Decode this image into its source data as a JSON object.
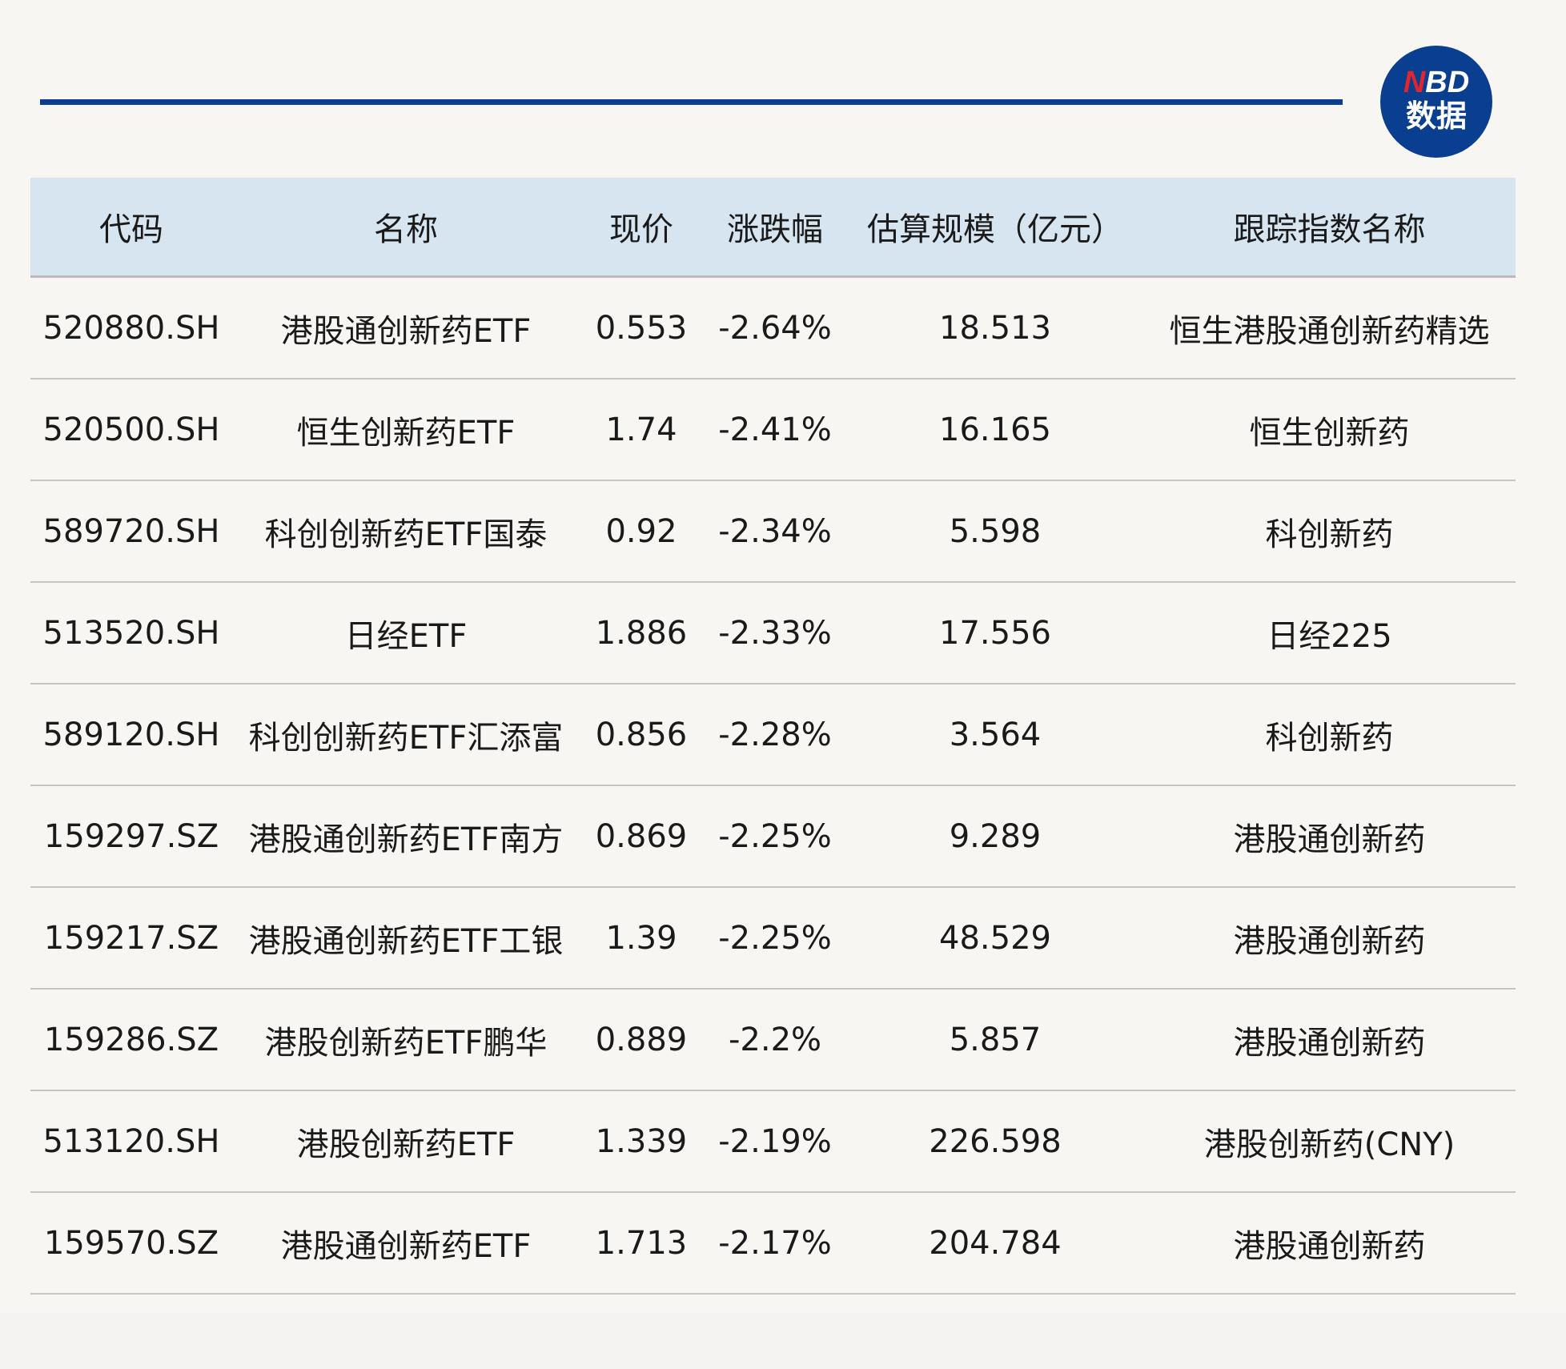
{
  "logo": {
    "n": "N",
    "bd": "BD",
    "sub": "数据"
  },
  "colors": {
    "accent": "#0a3f8f",
    "header_bg": "#d7e5f0",
    "logo_red": "#e0262e"
  },
  "table": {
    "headers": [
      "代码",
      "名称",
      "现价",
      "涨跌幅",
      "估算规模（亿元）",
      "跟踪指数名称"
    ],
    "rows": [
      [
        "520880.SH",
        "港股通创新药ETF",
        "0.553",
        "-2.64%",
        "18.513",
        "恒生港股通创新药精选"
      ],
      [
        "520500.SH",
        "恒生创新药ETF",
        "1.74",
        "-2.41%",
        "16.165",
        "恒生创新药"
      ],
      [
        "589720.SH",
        "科创创新药ETF国泰",
        "0.92",
        "-2.34%",
        "5.598",
        "科创新药"
      ],
      [
        "513520.SH",
        "日经ETF",
        "1.886",
        "-2.33%",
        "17.556",
        "日经225"
      ],
      [
        "589120.SH",
        "科创创新药ETF汇添富",
        "0.856",
        "-2.28%",
        "3.564",
        "科创新药"
      ],
      [
        "159297.SZ",
        "港股通创新药ETF南方",
        "0.869",
        "-2.25%",
        "9.289",
        "港股通创新药"
      ],
      [
        "159217.SZ",
        "港股通创新药ETF工银",
        "1.39",
        "-2.25%",
        "48.529",
        "港股通创新药"
      ],
      [
        "159286.SZ",
        "港股创新药ETF鹏华",
        "0.889",
        "-2.2%",
        "5.857",
        "港股通创新药"
      ],
      [
        "513120.SH",
        "港股创新药ETF",
        "1.339",
        "-2.19%",
        "226.598",
        "港股创新药(CNY)"
      ],
      [
        "159570.SZ",
        "港股通创新药ETF",
        "1.713",
        "-2.17%",
        "204.784",
        "港股通创新药"
      ]
    ]
  }
}
